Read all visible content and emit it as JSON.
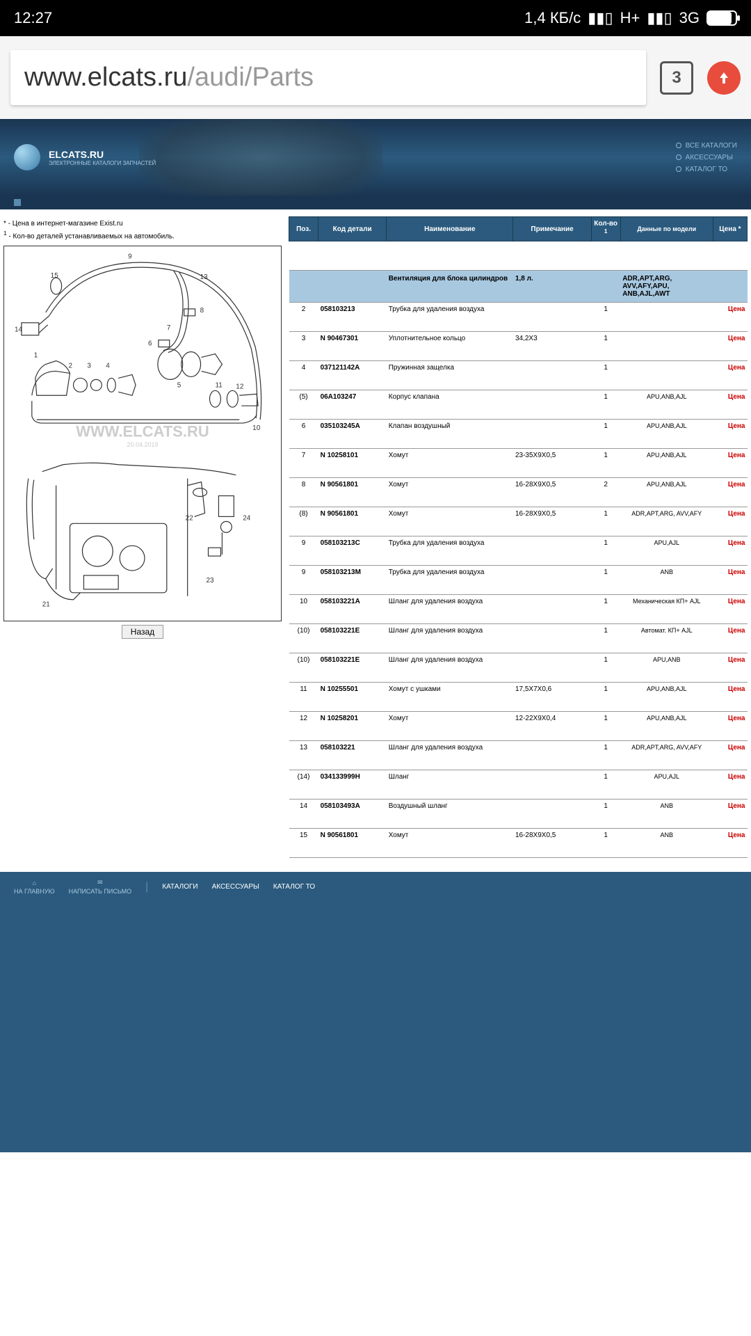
{
  "status": {
    "time": "12:27",
    "speed": "1,4 КБ/с",
    "network1": "H+",
    "network2": "3G"
  },
  "browser": {
    "url_host": "www.elcats.ru",
    "url_path": "/audi/Parts",
    "tab_count": "3"
  },
  "site": {
    "logo_title": "ELCATS.RU",
    "logo_sub": "ЭЛЕКТРОННЫЕ КАТАЛОГИ ЗАПЧАСТЕЙ",
    "nav": [
      {
        "label": "ВСЕ КАТАЛОГИ"
      },
      {
        "label": "АКСЕССУАРЫ"
      },
      {
        "label": "КАТАЛОГ ТО"
      }
    ]
  },
  "notes": {
    "note1": "* - Цена в интернет-магазине Exist.ru",
    "note2_sup": "1",
    "note2": " - Кол-во деталей устанавливаемых на автомобиль."
  },
  "diagram": {
    "watermark": "WWW.ELCATS.RU",
    "watermark_date": "20.04.2019",
    "callouts": [
      "1",
      "2",
      "3",
      "4",
      "5",
      "6",
      "7",
      "8",
      "9",
      "10",
      "11",
      "12",
      "13",
      "14",
      "15",
      "21",
      "22",
      "23",
      "24"
    ],
    "back_label": "Назад"
  },
  "table": {
    "headers": {
      "pos": "Поз.",
      "code": "Код детали",
      "name": "Наименование",
      "note": "Примечание",
      "qty": "Кол-во",
      "qty_sup": "1",
      "model": "Данные по модели",
      "price": "Цена *"
    },
    "section": {
      "name": "Вентиляция для блока цилиндров",
      "note": "1,8 л.",
      "model": "ADR,APT,ARG, AVV,AFY,APU, ANB,AJL,AWT"
    },
    "rows": [
      {
        "pos": "2",
        "code": "058103213",
        "name": "Трубка для удаления воздуха",
        "note": "",
        "qty": "1",
        "model": "",
        "price": "Цена"
      },
      {
        "pos": "3",
        "code": "N  90467301",
        "name": "Уплотнительное кольцо",
        "note": "34,2X3",
        "qty": "1",
        "model": "",
        "price": "Цена"
      },
      {
        "pos": "4",
        "code": "037121142A",
        "name": "Пружинная защелка",
        "note": "",
        "qty": "1",
        "model": "",
        "price": "Цена"
      },
      {
        "pos": "(5)",
        "code": "06A103247",
        "name": "Корпус клапана",
        "note": "",
        "qty": "1",
        "model": "APU,ANB,AJL",
        "price": "Цена"
      },
      {
        "pos": "6",
        "code": "035103245A",
        "name": "Клапан воздушный",
        "note": "",
        "qty": "1",
        "model": "APU,ANB,AJL",
        "price": "Цена"
      },
      {
        "pos": "7",
        "code": "N  10258101",
        "name": "Хомут",
        "note": "23-35X9X0,5",
        "qty": "1",
        "model": "APU,ANB,AJL",
        "price": "Цена"
      },
      {
        "pos": "8",
        "code": "N  90561801",
        "name": "Хомут",
        "note": "16-28X9X0,5",
        "qty": "2",
        "model": "APU,ANB,AJL",
        "price": "Цена"
      },
      {
        "pos": "(8)",
        "code": "N  90561801",
        "name": "Хомут",
        "note": "16-28X9X0,5",
        "qty": "1",
        "model": "ADR,APT,ARG, AVV,AFY",
        "price": "Цена"
      },
      {
        "pos": "9",
        "code": "058103213C",
        "name": "Трубка для удаления воздуха",
        "note": "",
        "qty": "1",
        "model": "APU,AJL",
        "price": "Цена"
      },
      {
        "pos": "9",
        "code": "058103213M",
        "name": "Трубка для удаления воздуха",
        "note": "",
        "qty": "1",
        "model": "ANB",
        "price": "Цена"
      },
      {
        "pos": "10",
        "code": "058103221A",
        "name": "Шланг для удаления воздуха",
        "note": "",
        "qty": "1",
        "model": "Механическая КП+ AJL",
        "price": "Цена"
      },
      {
        "pos": "(10)",
        "code": "058103221E",
        "name": "Шланг для удаления воздуха",
        "note": "",
        "qty": "1",
        "model": "Автомат. КП+ AJL",
        "price": "Цена"
      },
      {
        "pos": "(10)",
        "code": "058103221E",
        "name": "Шланг для удаления воздуха",
        "note": "",
        "qty": "1",
        "model": "APU,ANB",
        "price": "Цена"
      },
      {
        "pos": "11",
        "code": "N  10255501",
        "name": "Хомут с ушками",
        "note": "17,5X7X0,6",
        "qty": "1",
        "model": "APU,ANB,AJL",
        "price": "Цена"
      },
      {
        "pos": "12",
        "code": "N  10258201",
        "name": "Хомут",
        "note": "12-22X9X0,4",
        "qty": "1",
        "model": "APU,ANB,AJL",
        "price": "Цена"
      },
      {
        "pos": "13",
        "code": "058103221",
        "name": "Шланг для удаления воздуха",
        "note": "",
        "qty": "1",
        "model": "ADR,APT,ARG, AVV,AFY",
        "price": "Цена"
      },
      {
        "pos": "(14)",
        "code": "034133999H",
        "name": "Шланг",
        "note": "",
        "qty": "1",
        "model": "APU,AJL",
        "price": "Цена"
      },
      {
        "pos": "14",
        "code": "058103493A",
        "name": "Воздушный шланг",
        "note": "",
        "qty": "1",
        "model": "ANB",
        "price": "Цена"
      },
      {
        "pos": "15",
        "code": "N  90561801",
        "name": "Хомут",
        "note": "16-28X9X0,5",
        "qty": "1",
        "model": "ANB",
        "price": "Цена"
      }
    ]
  },
  "footer": {
    "home": "НА ГЛАВНУЮ",
    "mail": "НАПИСАТЬ ПИСЬМО",
    "links": [
      "КАТАЛОГИ",
      "АКСЕССУАРЫ",
      "КАТАЛОГ ТО"
    ]
  }
}
